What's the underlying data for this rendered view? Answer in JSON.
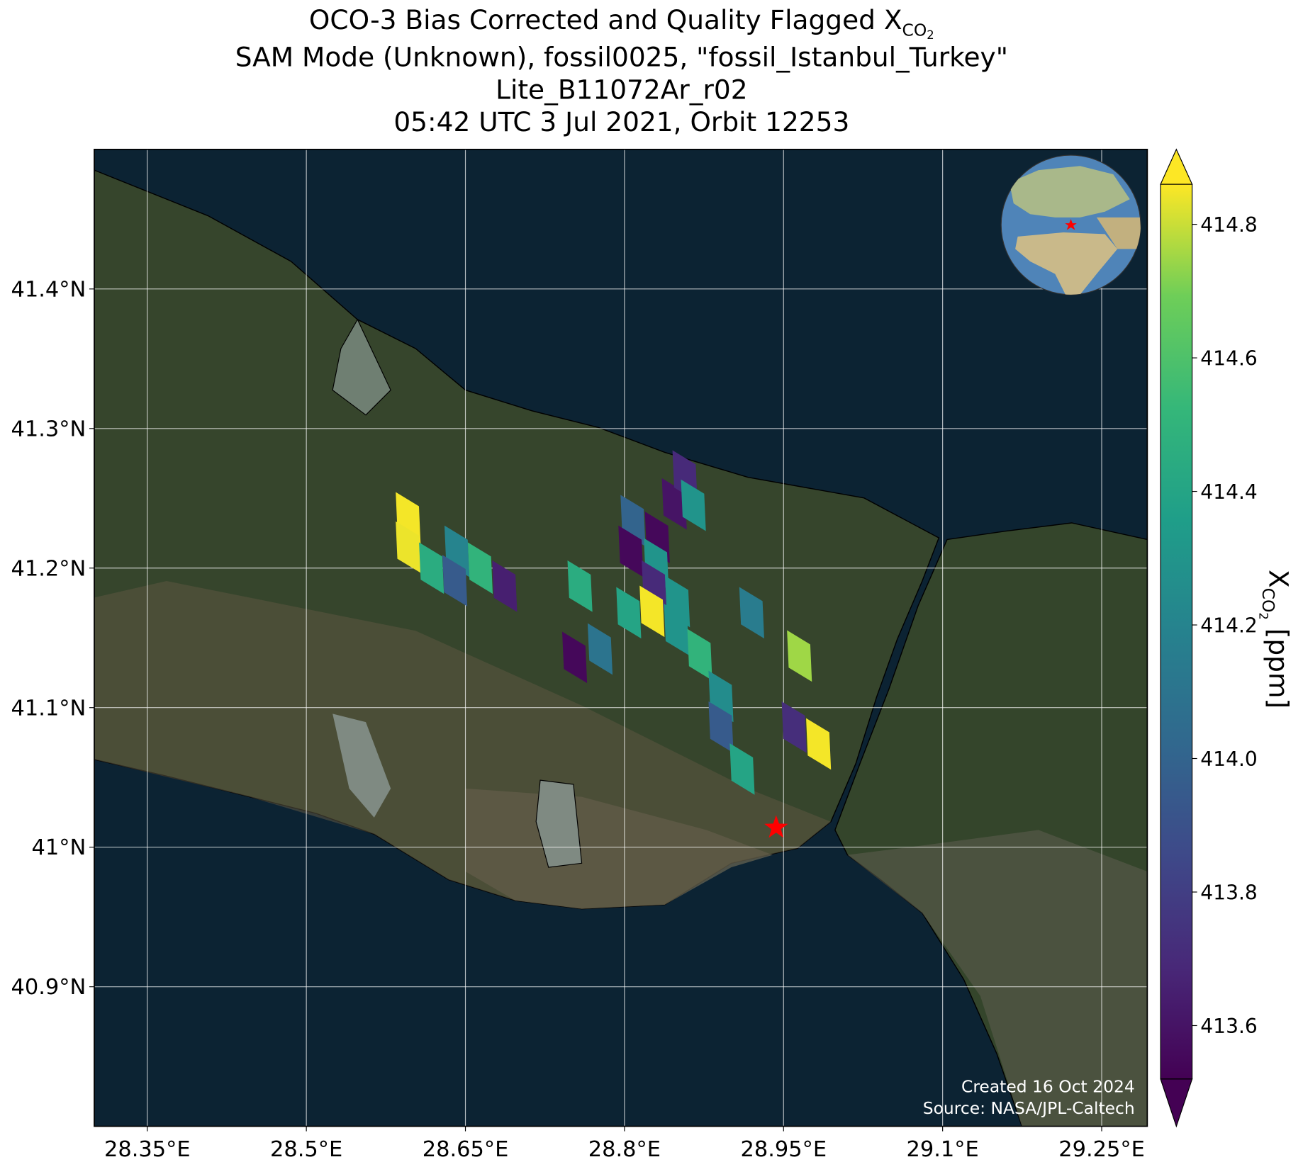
{
  "chart_data": {
    "type": "map",
    "title": {
      "prefix": "OCO-3 Bias Corrected and Quality Flagged X",
      "subscript": "CO",
      "subsubscript": "2"
    },
    "subtitle": [
      "SAM Mode (Unknown), fossil0025, \"fossil_Istanbul_Turkey\"",
      "Lite_B11072Ar_r02",
      "05:42 UTC 3 Jul 2021, Orbit 12253"
    ],
    "xlim": [
      28.3,
      29.293
    ],
    "ylim": [
      40.8,
      41.5
    ],
    "xticks": [
      {
        "value": 28.35,
        "label": "28.35°E"
      },
      {
        "value": 28.5,
        "label": "28.5°E"
      },
      {
        "value": 28.65,
        "label": "28.65°E"
      },
      {
        "value": 28.8,
        "label": "28.8°E"
      },
      {
        "value": 28.95,
        "label": "28.95°E"
      },
      {
        "value": 29.1,
        "label": "29.1°E"
      },
      {
        "value": 29.25,
        "label": "29.25°E"
      }
    ],
    "yticks": [
      {
        "value": 40.9,
        "label": "40.9°N"
      },
      {
        "value": 41,
        "label": "41°N"
      },
      {
        "value": 41.1,
        "label": "41.1°N"
      },
      {
        "value": 41.2,
        "label": "41.2°N"
      },
      {
        "value": 41.3,
        "label": "41.3°N"
      },
      {
        "value": 41.4,
        "label": "41.4°N"
      }
    ],
    "grid": true,
    "colormap": "viridis",
    "clim": [
      413.52,
      414.86
    ],
    "extend": "both",
    "cticks": [
      413.6,
      413.8,
      {
        "value": 414,
        "label": "414.0"
      },
      414.2,
      414.4,
      414.6,
      414.8
    ],
    "colorbar_label": {
      "prefix": "X",
      "subscript": "CO",
      "subsubscript": "2",
      "suffix": " [ppm]"
    },
    "lon": [
      28.596,
      28.596,
      28.618,
      28.642,
      28.64,
      28.664,
      28.687,
      28.758,
      28.753,
      28.777,
      28.808,
      28.806,
      28.831,
      28.83,
      28.828,
      28.847,
      28.857,
      28.865,
      28.85,
      28.804,
      28.826,
      28.849,
      28.871,
      28.891,
      28.891,
      28.911,
      28.92,
      28.965,
      28.96,
      28.983
    ],
    "lat": [
      41.236,
      41.215,
      41.2,
      41.212,
      41.191,
      41.2,
      41.187,
      41.187,
      41.136,
      41.142,
      41.234,
      41.212,
      41.222,
      41.203,
      41.187,
      41.246,
      41.266,
      41.245,
      41.176,
      41.168,
      41.169,
      41.156,
      41.138,
      41.108,
      41.086,
      41.056,
      41.168,
      41.137,
      41.086,
      41.074
    ],
    "values": [
      414.85,
      414.84,
      414.45,
      414.2,
      413.95,
      414.5,
      413.65,
      414.45,
      413.55,
      414.1,
      414.0,
      413.55,
      413.55,
      414.3,
      413.7,
      413.6,
      413.7,
      414.3,
      414.3,
      414.4,
      414.85,
      414.3,
      414.5,
      414.25,
      413.95,
      414.4,
      414.15,
      414.75,
      413.72,
      414.85
    ],
    "target": {
      "lon": 28.943,
      "lat": 41.014
    },
    "annotations": [
      "Created 16 Oct 2024",
      "Source: NASA/JPL-Caltech"
    ]
  }
}
